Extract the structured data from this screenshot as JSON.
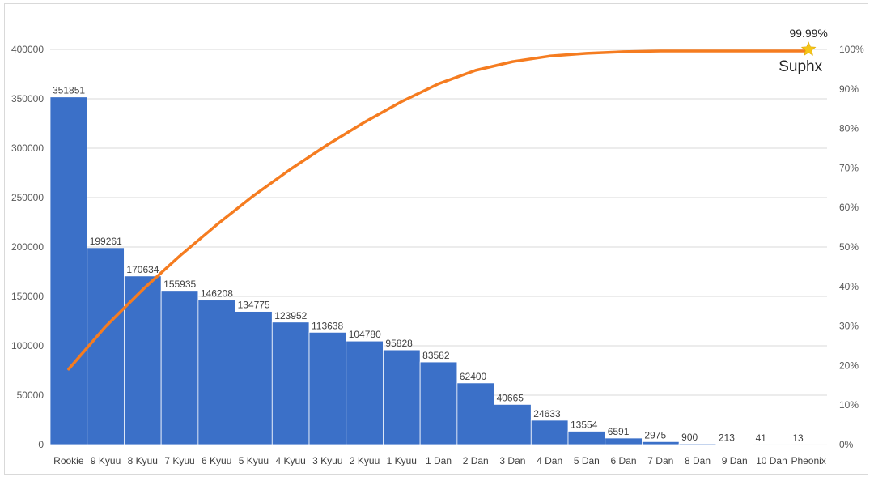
{
  "chart_data": {
    "type": "bar",
    "categories": [
      "Rookie",
      "9 Kyuu",
      "8 Kyuu",
      "7 Kyuu",
      "6 Kyuu",
      "5 Kyuu",
      "4 Kyuu",
      "3 Kyuu",
      "2 Kyuu",
      "1 Kyuu",
      "1 Dan",
      "2 Dan",
      "3 Dan",
      "4 Dan",
      "5 Dan",
      "6 Dan",
      "7 Dan",
      "8 Dan",
      "9 Dan",
      "10 Dan",
      "Pheonix"
    ],
    "series": [
      {
        "type": "bar",
        "color": "#3b70c8",
        "values": [
          351851,
          199261,
          170634,
          155935,
          146208,
          134775,
          123952,
          113638,
          104780,
          95828,
          83582,
          62400,
          40665,
          24633,
          13554,
          6591,
          2975,
          900,
          213,
          41,
          13
        ]
      },
      {
        "type": "line",
        "axis": "right",
        "color": "#f57c20",
        "values": [
          19.1,
          29.9,
          39.2,
          47.7,
          55.6,
          63.0,
          69.7,
          75.9,
          81.6,
          86.8,
          91.3,
          94.7,
          96.9,
          98.3,
          99.0,
          99.4,
          99.6,
          99.6,
          99.6,
          99.6,
          99.6
        ]
      }
    ],
    "y_left": {
      "min": 0,
      "max": 400000,
      "ticks": [
        0,
        50000,
        100000,
        150000,
        200000,
        250000,
        300000,
        350000,
        400000
      ]
    },
    "y_right": {
      "min": 0,
      "max": 100,
      "ticks": [
        "0%",
        "10%",
        "20%",
        "30%",
        "40%",
        "50%",
        "60%",
        "70%",
        "80%",
        "90%",
        "100%"
      ]
    },
    "grid": true,
    "annotation": {
      "value_label": "99.99%",
      "name_label": "Suphx",
      "marker": "star-icon",
      "marker_color": "#f5c518",
      "category_index": 20,
      "value": 100
    }
  }
}
